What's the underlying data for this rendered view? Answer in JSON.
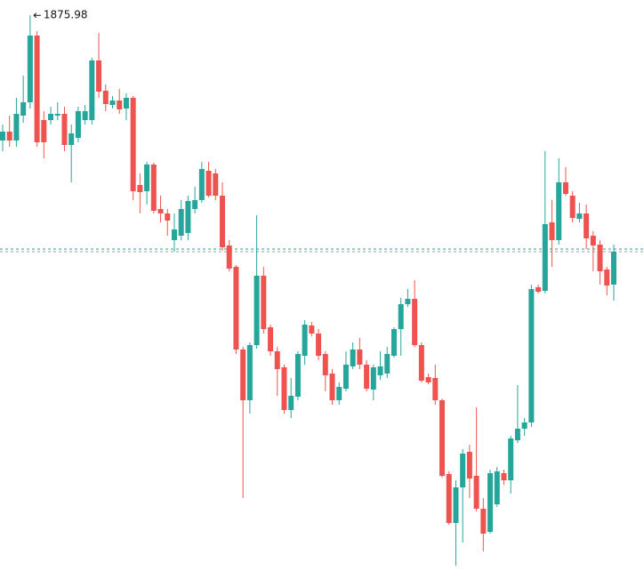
{
  "chart_data": {
    "type": "candlestick",
    "up_color": "#26a69a",
    "down_color": "#ef5350",
    "ylim": [
      1811.7,
      1877.7
    ],
    "price_lines": [
      1849.7,
      1849.4
    ],
    "price_line_colors": [
      "#26a69a",
      "#9e9e9e"
    ],
    "open": [
      1861.9,
      1862.9,
      1861.9,
      1864.7,
      1866.2,
      1873.7,
      1864.2,
      1864.2,
      1864.7,
      1864.9,
      1861.4,
      1862.2,
      1864.2,
      1864.2,
      1870.9,
      1867.5,
      1865.9,
      1866.4,
      1865.5,
      1866.7,
      1856.9,
      1856.2,
      1859.2,
      1854.2,
      1853.7,
      1850.7,
      1851.2,
      1851.5,
      1854.2,
      1855.2,
      1858.5,
      1858.2,
      1855.7,
      1850.1,
      1847.7,
      1838.4,
      1832.7,
      1838.9,
      1846.7,
      1840.9,
      1838.2,
      1836.4,
      1831.6,
      1833.1,
      1837.7,
      1841.1,
      1840.2,
      1837.9,
      1835.7,
      1832.7,
      1834.0,
      1836.5,
      1838.4,
      1836.7,
      1833.9,
      1835.5,
      1835.7,
      1837.7,
      1840.7,
      1843.5,
      1844.1,
      1838.9,
      1835.3,
      1835.2,
      1832.7,
      1824.4,
      1818.9,
      1822.9,
      1826.9,
      1824.2,
      1820.5,
      1817.9,
      1821.0,
      1824.5,
      1823.7,
      1828.2,
      1829.5,
      1830.2,
      1845.4,
      1845.0,
      1852.7,
      1850.7,
      1857.2,
      1855.7,
      1853.1,
      1853.7,
      1851.2,
      1850.2,
      1847.4,
      1845.7
    ],
    "high": [
      1863.7,
      1864.7,
      1866.7,
      1869.2,
      1875.98,
      1874.2,
      1865.2,
      1865.7,
      1866.2,
      1865.7,
      1863.7,
      1865.7,
      1865.9,
      1871.2,
      1874.0,
      1868.2,
      1866.9,
      1867.7,
      1867.2,
      1866.9,
      1858.2,
      1859.5,
      1859.4,
      1855.7,
      1854.2,
      1853.7,
      1855.2,
      1855.7,
      1856.7,
      1859.5,
      1859.5,
      1858.7,
      1857.2,
      1850.7,
      1847.9,
      1838.7,
      1839.2,
      1853.5,
      1847.7,
      1841.2,
      1838.7,
      1836.7,
      1835.2,
      1838.2,
      1841.7,
      1841.5,
      1840.7,
      1838.2,
      1836.2,
      1834.7,
      1838.2,
      1839.2,
      1839.7,
      1837.2,
      1836.7,
      1838.2,
      1838.7,
      1840.9,
      1844.2,
      1845.2,
      1846.2,
      1839.2,
      1835.7,
      1836.7,
      1832.9,
      1824.7,
      1823.7,
      1827.2,
      1827.7,
      1831.9,
      1821.7,
      1824.9,
      1825.2,
      1824.9,
      1828.7,
      1834.4,
      1830.7,
      1845.7,
      1845.7,
      1860.7,
      1855.2,
      1859.9,
      1858.9,
      1856.2,
      1854.9,
      1854.7,
      1851.7,
      1850.7,
      1847.7,
      1850.2
    ],
    "low": [
      1860.7,
      1861.2,
      1861.2,
      1863.9,
      1865.5,
      1861.2,
      1859.9,
      1863.7,
      1864.2,
      1860.7,
      1857.2,
      1861.7,
      1863.7,
      1863.7,
      1866.7,
      1865.2,
      1865.5,
      1864.9,
      1864.2,
      1855.2,
      1853.7,
      1854.7,
      1853.7,
      1852.7,
      1851.2,
      1849.4,
      1850.7,
      1850.7,
      1853.7,
      1854.9,
      1855.5,
      1855.2,
      1849.5,
      1847.2,
      1837.9,
      1821.7,
      1831.2,
      1838.5,
      1840.2,
      1837.7,
      1833.2,
      1831.2,
      1830.7,
      1832.7,
      1836.7,
      1839.9,
      1837.2,
      1833.7,
      1832.2,
      1832.2,
      1833.7,
      1836.2,
      1836.2,
      1833.7,
      1832.7,
      1835.0,
      1835.2,
      1837.5,
      1837.7,
      1843.2,
      1838.7,
      1834.7,
      1834.5,
      1832.2,
      1824.0,
      1818.7,
      1814.1,
      1816.7,
      1821.7,
      1820.2,
      1815.7,
      1817.7,
      1820.7,
      1823.2,
      1822.2,
      1827.9,
      1828.7,
      1829.7,
      1844.7,
      1844.7,
      1847.7,
      1850.2,
      1855.7,
      1852.7,
      1852.7,
      1849.7,
      1847.2,
      1845.7,
      1844.5,
      1843.9
    ],
    "close": [
      1862.9,
      1861.9,
      1864.9,
      1866.2,
      1873.7,
      1861.7,
      1861.7,
      1864.9,
      1864.9,
      1861.4,
      1862.7,
      1865.2,
      1865.2,
      1870.9,
      1867.4,
      1866.0,
      1866.4,
      1865.4,
      1866.7,
      1856.2,
      1856.1,
      1859.2,
      1854.0,
      1853.7,
      1852.9,
      1851.9,
      1854.2,
      1855.1,
      1855.2,
      1858.7,
      1855.7,
      1855.7,
      1849.9,
      1847.5,
      1838.4,
      1832.7,
      1838.9,
      1846.7,
      1840.7,
      1838.2,
      1836.2,
      1831.6,
      1833.2,
      1837.9,
      1841.2,
      1840.2,
      1837.7,
      1835.5,
      1832.7,
      1834.2,
      1836.7,
      1838.4,
      1836.7,
      1834.0,
      1836.4,
      1836.5,
      1837.9,
      1840.7,
      1843.5,
      1844.1,
      1838.9,
      1834.9,
      1834.7,
      1832.7,
      1824.2,
      1818.9,
      1822.9,
      1826.7,
      1823.9,
      1820.5,
      1817.7,
      1824.5,
      1824.7,
      1823.7,
      1828.4,
      1829.5,
      1830.2,
      1845.2,
      1844.9,
      1852.5,
      1850.7,
      1857.2,
      1855.9,
      1853.2,
      1853.7,
      1850.9,
      1850.1,
      1847.2,
      1845.6,
      1849.4
    ]
  }
}
